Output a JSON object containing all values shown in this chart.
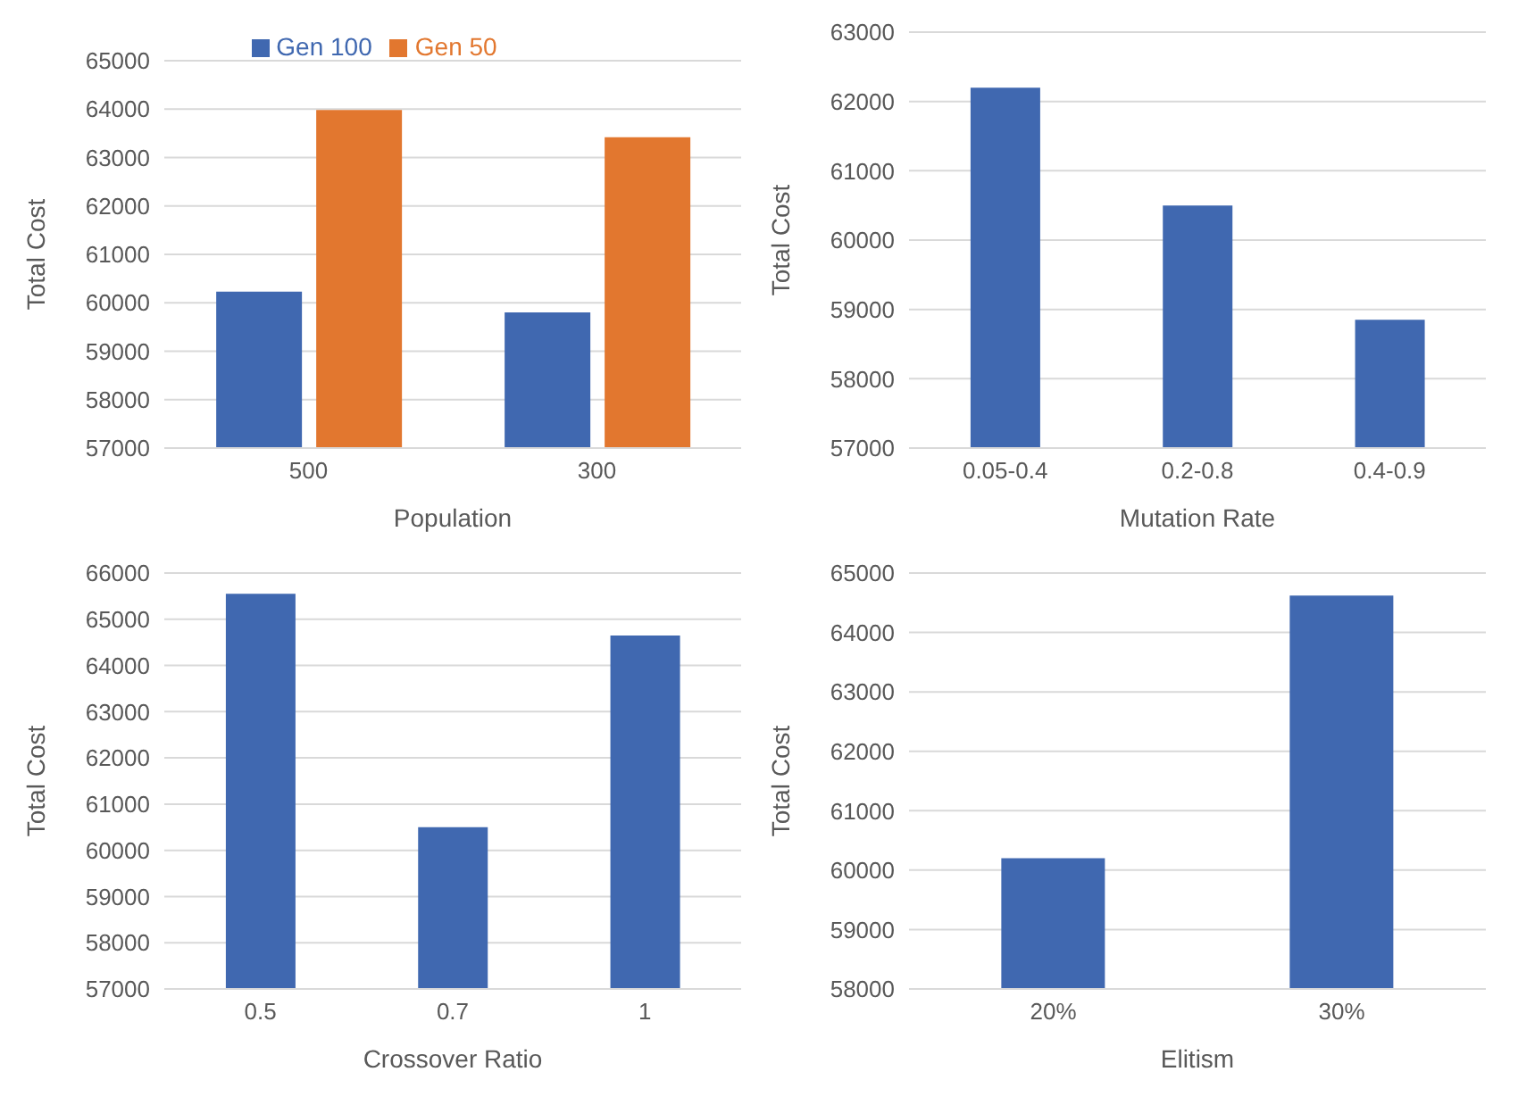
{
  "chart_data": [
    {
      "type": "bar",
      "categories": [
        "500",
        "300"
      ],
      "xlabel": "Population",
      "ylabel": "Total Cost",
      "ylim": [
        57000,
        65000
      ],
      "yticks": [
        57000,
        58000,
        59000,
        60000,
        61000,
        62000,
        63000,
        64000,
        65000
      ],
      "grid": "y",
      "legend": "top",
      "series": [
        {
          "name": "Gen 100",
          "color": "#4068b0",
          "values": [
            60230,
            59800
          ]
        },
        {
          "name": "Gen 50",
          "color": "#e2772f",
          "values": [
            63980,
            63420
          ]
        }
      ]
    },
    {
      "type": "bar",
      "categories": [
        "0.05-0.4",
        "0.2-0.8",
        "0.4-0.9"
      ],
      "xlabel": "Mutation Rate",
      "ylabel": "Total Cost",
      "ylim": [
        57000,
        63000
      ],
      "yticks": [
        57000,
        58000,
        59000,
        60000,
        61000,
        62000,
        63000
      ],
      "grid": "y",
      "series": [
        {
          "color": "#4068b0",
          "values": [
            62200,
            60500,
            58850
          ]
        }
      ]
    },
    {
      "type": "bar",
      "categories": [
        "0.5",
        "0.7",
        "1"
      ],
      "xlabel": "Crossover Ratio",
      "ylabel": "Total Cost",
      "ylim": [
        57000,
        66000
      ],
      "yticks": [
        57000,
        58000,
        59000,
        60000,
        61000,
        62000,
        63000,
        64000,
        65000,
        66000
      ],
      "grid": "y",
      "series": [
        {
          "color": "#4068b0",
          "values": [
            65550,
            60500,
            64650
          ]
        }
      ]
    },
    {
      "type": "bar",
      "categories": [
        "20%",
        "30%"
      ],
      "xlabel": "Elitism",
      "ylabel": "Total Cost",
      "ylim": [
        58000,
        65000
      ],
      "yticks": [
        58000,
        59000,
        60000,
        61000,
        62000,
        63000,
        64000,
        65000
      ],
      "grid": "y",
      "series": [
        {
          "color": "#4068b0",
          "values": [
            60200,
            64620
          ]
        }
      ]
    }
  ]
}
